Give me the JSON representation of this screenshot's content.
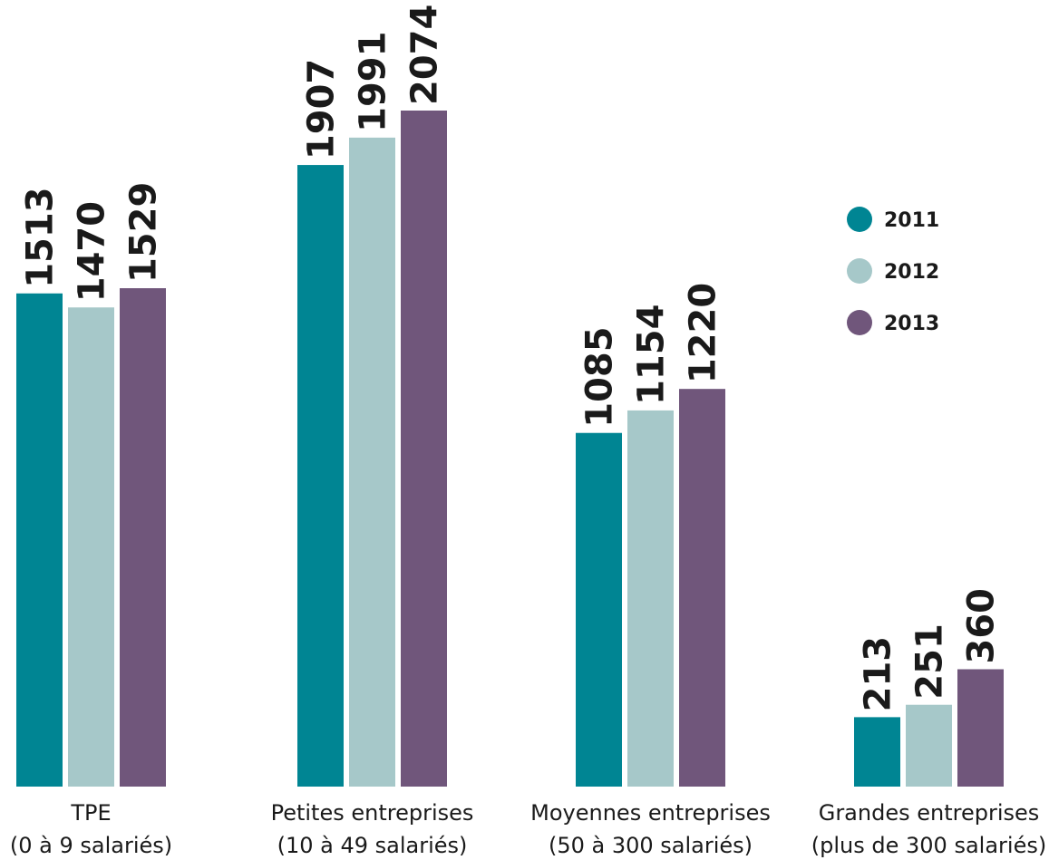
{
  "chart_data": {
    "type": "bar",
    "categories": [
      [
        "TPE",
        "(0 à 9 salariés)"
      ],
      [
        "Petites entreprises",
        "(10 à 49 salariés)"
      ],
      [
        "Moyennes entreprises",
        "(50 à 300 salariés)"
      ],
      [
        "Grandes entreprises",
        "(plus de 300 salariés)"
      ]
    ],
    "series": [
      {
        "name": "2011",
        "color": "#008593",
        "values": [
          1513,
          1907,
          1085,
          213
        ]
      },
      {
        "name": "2012",
        "color": "#a6c8c9",
        "values": [
          1470,
          1991,
          1154,
          251
        ]
      },
      {
        "name": "2013",
        "color": "#70567b",
        "values": [
          1529,
          2074,
          1220,
          360
        ]
      }
    ],
    "ylim": [
      0,
      2074
    ],
    "grid": false,
    "legend_position": "right"
  }
}
